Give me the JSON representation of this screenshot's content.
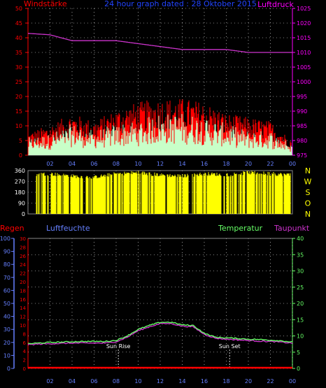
{
  "header": {
    "left_label": "Windstärke",
    "title": "24 hour graph dated : 28 Oktober 2015",
    "right_label": "Luftdruck"
  },
  "colors": {
    "bg": "#000000",
    "wind_gust": "#ff0000",
    "wind_avg": "#c8ffc8",
    "pressure": "#cc33cc",
    "direction": "#ffff00",
    "grid": "#ffffff",
    "rain": "#ff0000",
    "humidity": "#6680ff",
    "temperature": "#66ff66",
    "dewpoint": "#cc33cc",
    "left_axis": "#ff0000",
    "right_axis": "#ff00ff",
    "annot": "#ffffff"
  },
  "time_ticks": [
    "02",
    "04",
    "06",
    "08",
    "10",
    "12",
    "14",
    "16",
    "18",
    "20",
    "22",
    "00"
  ],
  "chart_data": [
    {
      "type": "line",
      "title": "24 hour graph dated : 28 Oktober 2015",
      "ylabel": "Windstärke",
      "y2label": "Luftdruck",
      "ylim": [
        0,
        50
      ],
      "y_ticks": [
        "0",
        "5",
        "10",
        "15",
        "20",
        "25",
        "30",
        "35",
        "40",
        "45",
        "50"
      ],
      "y2lim": [
        975,
        1025
      ],
      "y2_ticks": [
        "975",
        "980",
        "985",
        "990",
        "995",
        "1000",
        "1005",
        "1010",
        "1015",
        "1020",
        "1025"
      ],
      "x_hours": [
        0,
        2,
        4,
        6,
        8,
        10,
        12,
        14,
        16,
        18,
        20,
        22,
        24
      ],
      "series": [
        {
          "values": [
            6,
            8,
            11,
            9,
            12,
            14,
            15,
            15,
            14,
            11,
            10,
            9,
            4
          ]
        },
        {
          "values": [
            5,
            6,
            9,
            7,
            9,
            10,
            12,
            12,
            11,
            9,
            7,
            7,
            3
          ]
        },
        {
          "values": [
            1016.5,
            1016,
            1014,
            1014,
            1014,
            1013,
            1012,
            1011,
            1011,
            1011,
            1010,
            1010,
            1010
          ]
        }
      ],
      "grid": true
    },
    {
      "type": "bar",
      "ylim": [
        0,
        360
      ],
      "y_ticks": [
        "0",
        "90",
        "180",
        "270",
        "360"
      ],
      "right_labels": [
        "N",
        "W",
        "S",
        "O",
        "N"
      ],
      "x_hours": [
        0,
        2,
        4,
        6,
        8,
        10,
        12,
        14,
        16,
        18,
        20,
        22,
        24
      ],
      "values": [
        320,
        330,
        310,
        300,
        330,
        340,
        320,
        310,
        330,
        320,
        340,
        330,
        320
      ],
      "grid": true
    },
    {
      "type": "line",
      "labels": {
        "rain": "Regen",
        "humidity": "Luftfeuchte",
        "temperature": "Temperatur",
        "dewpoint": "Taupunkt"
      },
      "rain_ylim": [
        0,
        30
      ],
      "rain_ticks": [
        "0",
        "2",
        "4",
        "6",
        "8",
        "10",
        "12",
        "14",
        "16",
        "18",
        "20",
        "22",
        "24",
        "26",
        "28",
        "30"
      ],
      "humidity_ylim": [
        0,
        100
      ],
      "humidity_ticks": [
        "0",
        "10",
        "20",
        "30",
        "40",
        "50",
        "60",
        "70",
        "80",
        "90",
        "100"
      ],
      "temperature_ylim": [
        0,
        40
      ],
      "temperature_ticks": [
        "0",
        "5",
        "10",
        "15",
        "20",
        "25",
        "30",
        "35",
        "40"
      ],
      "x_hours": [
        0,
        1,
        2,
        3,
        4,
        5,
        6,
        7,
        8,
        9,
        10,
        11,
        12,
        13,
        14,
        15,
        16,
        17,
        18,
        19,
        20,
        21,
        22,
        23,
        24
      ],
      "series": [
        {
          "values": [
            0,
            0,
            0,
            0,
            0,
            0,
            0,
            0,
            0,
            0,
            0,
            0,
            0,
            0,
            0,
            0,
            0,
            0,
            0,
            0,
            0,
            0,
            0,
            0,
            0
          ]
        },
        {
          "values": [
            7.6,
            7.8,
            8.0,
            8.1,
            8.2,
            8.3,
            8.3,
            8.3,
            8.6,
            10.0,
            12.0,
            13.2,
            14.2,
            14.2,
            13.4,
            13.2,
            10.8,
            9.6,
            9.4,
            9.2,
            9.0,
            8.9,
            8.7,
            8.5,
            8.1
          ]
        },
        {
          "values": [
            7.3,
            7.5,
            7.6,
            7.7,
            7.8,
            7.8,
            7.8,
            7.8,
            8.2,
            9.6,
            11.6,
            12.8,
            13.8,
            13.8,
            13.0,
            12.8,
            10.5,
            9.3,
            9.0,
            8.8,
            8.6,
            8.4,
            8.3,
            8.1,
            7.8
          ]
        }
      ],
      "annotations": [
        {
          "label": "Sun Rise",
          "hour": 8.2
        },
        {
          "label": "Sun Set",
          "hour": 18.3
        }
      ],
      "grid": true
    }
  ]
}
